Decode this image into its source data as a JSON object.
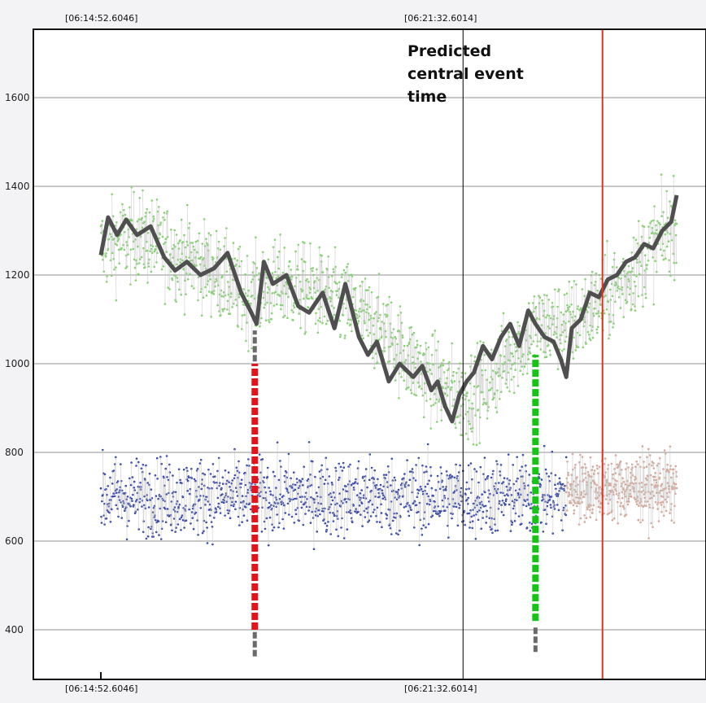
{
  "chart_data": {
    "type": "scatter",
    "title": "",
    "xlabel": "",
    "ylabel": "",
    "x_start_label": "[06:14:52.6046]",
    "x_mid_label": "[06:21:32.6014]",
    "x_time_range_s": [
      0,
      636
    ],
    "ylim": [
      300,
      1730
    ],
    "yticks": [
      400,
      600,
      800,
      1000,
      1200,
      1400,
      1600
    ],
    "grid": true,
    "legend": "none",
    "annotation": [
      "Predicted",
      "central event",
      "time"
    ],
    "markers": [
      {
        "name": "predicted-center",
        "x_s": 400,
        "color": "#000000"
      },
      {
        "name": "red-vertical-line",
        "x_s": 554,
        "color": "#e0301e"
      }
    ],
    "dashed_markers": [
      {
        "name": "red-dashed-marker",
        "x_s": 170,
        "y_range": [
          400,
          1000
        ],
        "color": "#e4141a"
      },
      {
        "name": "green-dashed-marker",
        "x_s": 480,
        "y_range": [
          420,
          1020
        ],
        "color": "#17c317"
      }
    ],
    "gray_ticks": [
      {
        "x_s": 170,
        "y_range": [
          340,
          400
        ]
      },
      {
        "x_s": 170,
        "y_range": [
          1005,
          1075
        ]
      },
      {
        "x_s": 480,
        "y_range": [
          350,
          405
        ]
      }
    ],
    "series": [
      {
        "type": "scatter",
        "color": "#7fd36a",
        "mean_x_s": [
          0,
          40,
          80,
          120,
          160,
          200,
          240,
          280,
          320,
          340,
          370,
          400,
          430,
          450,
          480,
          520,
          560,
          600,
          636
        ],
        "mean_y": [
          1260,
          1290,
          1250,
          1215,
          1150,
          1180,
          1160,
          1120,
          1060,
          1010,
          960,
          920,
          960,
          1020,
          1080,
          1090,
          1150,
          1240,
          1320
        ],
        "spread": 170
      },
      {
        "type": "scatter",
        "color": "#2c3eaa",
        "x_range_s": [
          0,
          514
        ],
        "mean_y": 700,
        "spread": 150
      },
      {
        "type": "scatter",
        "color": "#d9a595",
        "x_range_s": [
          514,
          636
        ],
        "mean_y": 720,
        "spread": 130
      },
      {
        "type": "line",
        "color": "#4f4f4f",
        "x_s": [
          0,
          8,
          18,
          28,
          40,
          55,
          70,
          82,
          95,
          110,
          125,
          140,
          155,
          165,
          172,
          180,
          190,
          205,
          218,
          230,
          245,
          258,
          270,
          285,
          295,
          305,
          318,
          330,
          345,
          355,
          365,
          372,
          380,
          388,
          396,
          404,
          412,
          422,
          432,
          442,
          452,
          462,
          472,
          480,
          490,
          500,
          508,
          514,
          520,
          530,
          540,
          550,
          560,
          570,
          580,
          590,
          600,
          610,
          620,
          630,
          636
        ],
        "y": [
          1245,
          1330,
          1290,
          1325,
          1290,
          1310,
          1240,
          1210,
          1230,
          1200,
          1215,
          1250,
          1160,
          1120,
          1090,
          1230,
          1180,
          1200,
          1130,
          1115,
          1160,
          1080,
          1180,
          1060,
          1020,
          1050,
          960,
          1000,
          970,
          995,
          940,
          960,
          905,
          870,
          930,
          960,
          980,
          1040,
          1010,
          1060,
          1090,
          1040,
          1120,
          1090,
          1060,
          1050,
          1010,
          970,
          1080,
          1100,
          1160,
          1150,
          1190,
          1200,
          1230,
          1240,
          1270,
          1260,
          1300,
          1320,
          1380
        ]
      }
    ]
  }
}
